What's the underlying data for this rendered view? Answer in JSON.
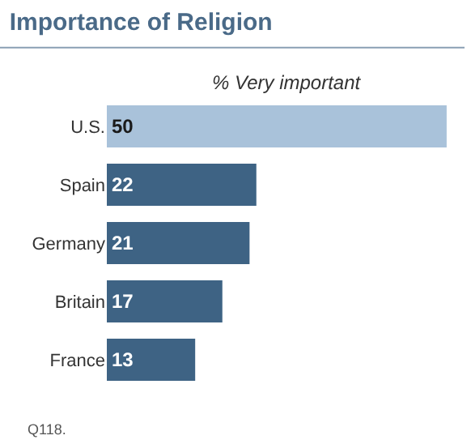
{
  "chart_data": {
    "type": "bar",
    "orientation": "horizontal",
    "title": "Importance of Religion",
    "subtitle": "% Very important",
    "categories": [
      "U.S.",
      "Spain",
      "Germany",
      "Britain",
      "France"
    ],
    "values": [
      50,
      22,
      21,
      17,
      13
    ],
    "colors": [
      "#a9c2da",
      "#3e6384",
      "#3e6384",
      "#3e6384",
      "#3e6384"
    ],
    "data_labels": true,
    "legend": false,
    "annotations": [
      "Q118."
    ]
  }
}
